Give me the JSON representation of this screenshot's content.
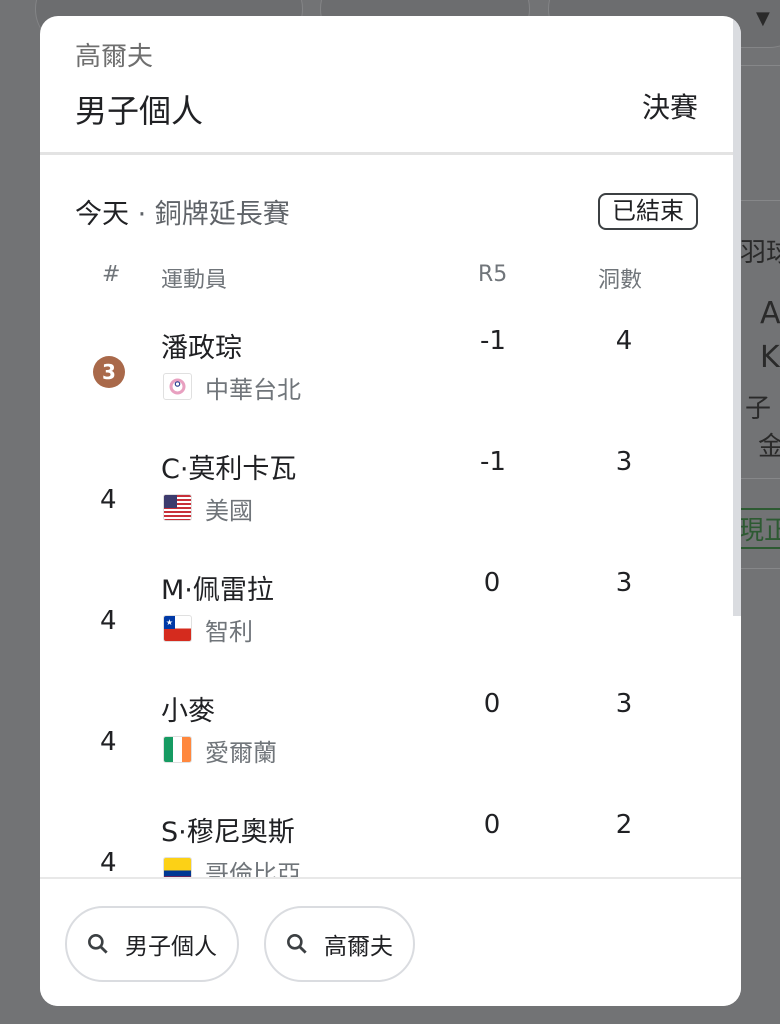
{
  "background": {
    "fragments": [
      "羽球",
      "A",
      "K",
      "子",
      "金",
      "現正"
    ]
  },
  "header": {
    "sport": "高爾夫",
    "event": "男子個人",
    "stage": "決賽"
  },
  "session": {
    "day": "今天",
    "separator": " · ",
    "round": "銅牌延長賽",
    "status": "已結束"
  },
  "table": {
    "columns": {
      "rank": "#",
      "athlete": "運動員",
      "r5": "R5",
      "holes": "洞數"
    },
    "rows": [
      {
        "rank": "3",
        "medal": "bronze",
        "name": "潘政琮",
        "country": "中華台北",
        "flag": "chinese-taipei",
        "r5": "-1",
        "holes": "4"
      },
      {
        "rank": "4",
        "name": "C·莫利卡瓦",
        "country": "美國",
        "flag": "usa",
        "r5": "-1",
        "holes": "3"
      },
      {
        "rank": "4",
        "name": "M·佩雷拉",
        "country": "智利",
        "flag": "chile",
        "r5": "0",
        "holes": "3"
      },
      {
        "rank": "4",
        "name": "小麥",
        "country": "愛爾蘭",
        "flag": "ireland",
        "r5": "0",
        "holes": "3"
      },
      {
        "rank": "4",
        "name": "S·穆尼奧斯",
        "country": "哥倫比亞",
        "flag": "colombia",
        "r5": "0",
        "holes": "2"
      }
    ]
  },
  "chips": [
    {
      "label": "男子個人",
      "icon": "search-icon"
    },
    {
      "label": "高爾夫",
      "icon": "search-icon"
    }
  ],
  "colors": {
    "bronze": "#a9694a"
  }
}
